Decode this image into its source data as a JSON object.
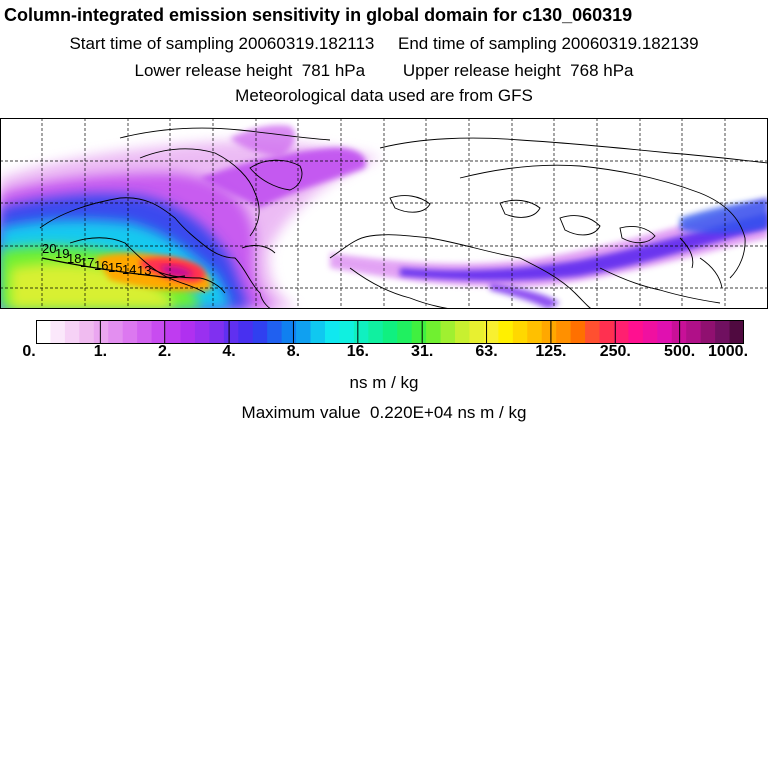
{
  "header": {
    "title": "Column-integrated emission sensitivity in global domain for c130_060319",
    "line1": "Start time of sampling 20060319.182113     End time of sampling 20060319.182139",
    "line2": "Lower release height  781 hPa        Upper release height  768 hPa",
    "line3": "Meteorological data used are from GFS"
  },
  "contour_labels": [
    "20",
    "19",
    "18",
    "17",
    "16",
    "15",
    "14",
    "13"
  ],
  "legend": {
    "labels": [
      "0.",
      "1.",
      "2.",
      "4.",
      "8.",
      "16.",
      "31.",
      "63.",
      "125.",
      "250.",
      "500.",
      "1000."
    ],
    "units": "ns m / kg",
    "colors": [
      "#ffffff",
      "#fbe8fb",
      "#f6d2f6",
      "#f0bbf0",
      "#eaa6f0",
      "#e38ff0",
      "#dc78f0",
      "#d262f0",
      "#c84cf0",
      "#bf3cf0",
      "#b030f0",
      "#9a30f0",
      "#8030f0",
      "#6030f0",
      "#4830f0",
      "#3040f0",
      "#2060f0",
      "#1080f0",
      "#10a0f0",
      "#10c8f0",
      "#10e8f0",
      "#10f0e0",
      "#10f0c0",
      "#10f0a0",
      "#10f080",
      "#20f060",
      "#40f040",
      "#70f030",
      "#a0f030",
      "#c8f030",
      "#e8f030",
      "#f8f030",
      "#fff000",
      "#ffd800",
      "#ffc000",
      "#ffa800",
      "#ff9000",
      "#ff7000",
      "#ff5030",
      "#ff3050",
      "#ff2070",
      "#ff1090",
      "#f010a0",
      "#e010b0",
      "#c81098",
      "#b01088",
      "#901070",
      "#701060",
      "#500a40"
    ]
  },
  "max_value": "Maximum value  0.220E+04 ns m / kg"
}
